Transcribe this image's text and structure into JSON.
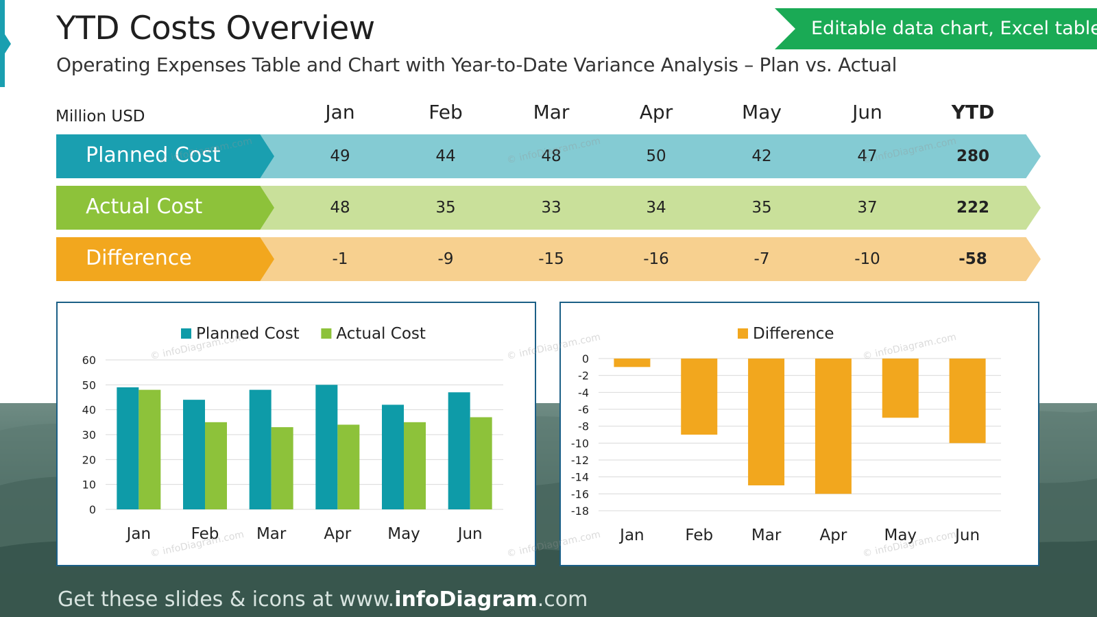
{
  "title": "YTD Costs Overview",
  "subtitle": "Operating Expenses Table and Chart with Year-to-Date Variance Analysis – Plan vs. Actual",
  "badge": "Editable data chart, Excel table",
  "unit_label": "Million USD",
  "columns": [
    "Jan",
    "Feb",
    "Mar",
    "Apr",
    "May",
    "Jun",
    "YTD"
  ],
  "rows": [
    {
      "label": "Planned Cost",
      "values": [
        "49",
        "44",
        "48",
        "50",
        "42",
        "47",
        "280"
      ],
      "label_color": "#1a9fb0",
      "band_color": "#84cbd3"
    },
    {
      "label": "Actual Cost",
      "values": [
        "48",
        "35",
        "33",
        "34",
        "35",
        "37",
        "222"
      ],
      "label_color": "#8dc23a",
      "band_color": "#c9e09a"
    },
    {
      "label": "Difference",
      "values": [
        "-1",
        "-9",
        "-15",
        "-16",
        "-7",
        "-10",
        "-58"
      ],
      "label_color": "#f2a71e",
      "band_color": "#f7d08f"
    }
  ],
  "watermark": "© infoDiagram.com",
  "footer": {
    "prefix": "Get these slides & icons at www.",
    "brand": "infoDiagram",
    "suffix": ".com"
  },
  "chart_data": [
    {
      "type": "bar",
      "categories": [
        "Jan",
        "Feb",
        "Mar",
        "Apr",
        "May",
        "Jun"
      ],
      "series": [
        {
          "name": "Planned Cost",
          "values": [
            49,
            44,
            48,
            50,
            42,
            47
          ],
          "color": "#0e9ba8"
        },
        {
          "name": "Actual Cost",
          "values": [
            48,
            35,
            33,
            34,
            35,
            37
          ],
          "color": "#8dc23a"
        }
      ],
      "ylim": [
        0,
        60
      ],
      "yticks": [
        0,
        10,
        20,
        30,
        40,
        50,
        60
      ],
      "legend": "top",
      "grid": true
    },
    {
      "type": "bar",
      "categories": [
        "Jan",
        "Feb",
        "Mar",
        "Apr",
        "May",
        "Jun"
      ],
      "series": [
        {
          "name": "Difference",
          "values": [
            -1,
            -9,
            -15,
            -16,
            -7,
            -10
          ],
          "color": "#f2a71e"
        }
      ],
      "ylim": [
        -18,
        0
      ],
      "yticks": [
        0,
        -2,
        -4,
        -6,
        -8,
        -10,
        -12,
        -14,
        -16,
        -18
      ],
      "legend": "top",
      "grid": true
    }
  ]
}
